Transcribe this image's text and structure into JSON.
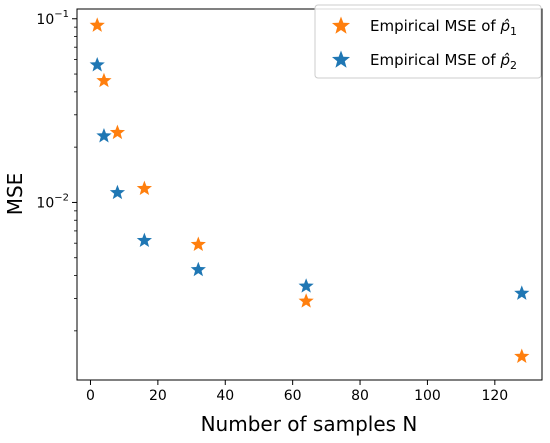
{
  "chart_data": {
    "type": "scatter",
    "title": "",
    "xlabel": "Number of samples N",
    "ylabel": "MSE",
    "xlim": [
      -4,
      134
    ],
    "ylim": [
      0.00108,
      0.113
    ],
    "yscale": "log",
    "grid": false,
    "legend_position": "top-right",
    "xticks": [
      0,
      20,
      40,
      60,
      80,
      100,
      120
    ],
    "yticks": [
      {
        "value": 0.01,
        "base": "10",
        "exp": "−2"
      },
      {
        "value": 0.1,
        "base": "10",
        "exp": "−1"
      }
    ],
    "series": [
      {
        "name": "Empirical MSE of p̂1",
        "legend_text": "Empirical MSE of ",
        "legend_symbol": "p̂",
        "legend_sub": "1",
        "color": "#ff7f0e",
        "marker": "star",
        "x": [
          2,
          4,
          8,
          16,
          32,
          64,
          128
        ],
        "y": [
          0.092,
          0.046,
          0.024,
          0.0119,
          0.0059,
          0.0029,
          0.00145
        ]
      },
      {
        "name": "Empirical MSE of p̂2",
        "legend_text": "Empirical MSE of ",
        "legend_symbol": "p̂",
        "legend_sub": "2",
        "color": "#1f77b4",
        "marker": "star",
        "x": [
          2,
          4,
          8,
          16,
          32,
          64,
          128
        ],
        "y": [
          0.056,
          0.023,
          0.0113,
          0.0062,
          0.0043,
          0.0035,
          0.0032
        ]
      }
    ]
  }
}
